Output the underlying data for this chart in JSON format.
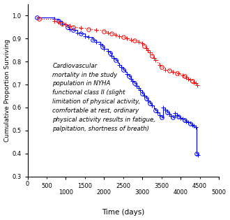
{
  "xlabel": "Time (days)",
  "ylabel": "Cumulative Proportion Surviving",
  "xlim": [
    0,
    5000
  ],
  "ylim": [
    0.3,
    1.05
  ],
  "xticks_major": [
    0,
    1000,
    2000,
    3000,
    4000,
    5000
  ],
  "xticks_minor": [
    500,
    1500,
    2500,
    3500,
    4500
  ],
  "yticks": [
    0.3,
    0.4,
    0.5,
    0.6,
    0.7,
    0.8,
    0.9,
    1.0
  ],
  "annotation": "Cardiovascular\nmortality in the study\npopulation in NYHA\nfunctional class II (slight\nlimitation of physical activity,\ncomfortable at rest, ordinary\nphysical activity results in fatigue,\npalpitation, shortness of breath)",
  "red_line_color": "#FF0000",
  "blue_line_color": "#0000FF",
  "blue_steps": [
    [
      250,
      0.99
    ],
    [
      700,
      0.985
    ],
    [
      800,
      0.975
    ],
    [
      900,
      0.965
    ],
    [
      950,
      0.96
    ],
    [
      1050,
      0.95
    ],
    [
      1100,
      0.94
    ],
    [
      1200,
      0.935
    ],
    [
      1300,
      0.925
    ],
    [
      1400,
      0.92
    ],
    [
      1500,
      0.91
    ],
    [
      1600,
      0.905
    ],
    [
      1700,
      0.895
    ],
    [
      1800,
      0.885
    ],
    [
      1900,
      0.875
    ],
    [
      1950,
      0.865
    ],
    [
      2000,
      0.855
    ],
    [
      2100,
      0.845
    ],
    [
      2150,
      0.835
    ],
    [
      2200,
      0.825
    ],
    [
      2250,
      0.815
    ],
    [
      2300,
      0.805
    ],
    [
      2350,
      0.795
    ],
    [
      2400,
      0.785
    ],
    [
      2450,
      0.775
    ],
    [
      2500,
      0.765
    ],
    [
      2550,
      0.755
    ],
    [
      2600,
      0.745
    ],
    [
      2650,
      0.735
    ],
    [
      2700,
      0.725
    ],
    [
      2750,
      0.715
    ],
    [
      2800,
      0.705
    ],
    [
      2850,
      0.695
    ],
    [
      2900,
      0.685
    ],
    [
      2950,
      0.675
    ],
    [
      3000,
      0.66
    ],
    [
      3050,
      0.65
    ],
    [
      3100,
      0.64
    ],
    [
      3150,
      0.63
    ],
    [
      3200,
      0.618
    ],
    [
      3250,
      0.608
    ],
    [
      3300,
      0.598
    ],
    [
      3350,
      0.588
    ],
    [
      3400,
      0.578
    ],
    [
      3450,
      0.568
    ],
    [
      3500,
      0.558
    ],
    [
      3550,
      0.6
    ],
    [
      3600,
      0.59
    ],
    [
      3650,
      0.58
    ],
    [
      3700,
      0.572
    ],
    [
      3750,
      0.565
    ],
    [
      3800,
      0.558
    ],
    [
      3850,
      0.575
    ],
    [
      3900,
      0.568
    ],
    [
      3950,
      0.562
    ],
    [
      4000,
      0.556
    ],
    [
      4050,
      0.55
    ],
    [
      4100,
      0.545
    ],
    [
      4150,
      0.54
    ],
    [
      4200,
      0.535
    ],
    [
      4250,
      0.53
    ],
    [
      4300,
      0.525
    ],
    [
      4350,
      0.52
    ],
    [
      4400,
      0.515
    ],
    [
      4420,
      0.4
    ],
    [
      4450,
      0.395
    ]
  ],
  "red_steps": [
    [
      300,
      0.985
    ],
    [
      700,
      0.975
    ],
    [
      800,
      0.97
    ],
    [
      900,
      0.965
    ],
    [
      1000,
      0.96
    ],
    [
      1100,
      0.955
    ],
    [
      1200,
      0.95
    ],
    [
      1400,
      0.945
    ],
    [
      1600,
      0.94
    ],
    [
      1800,
      0.935
    ],
    [
      2000,
      0.93
    ],
    [
      2100,
      0.925
    ],
    [
      2200,
      0.92
    ],
    [
      2300,
      0.915
    ],
    [
      2400,
      0.91
    ],
    [
      2500,
      0.905
    ],
    [
      2600,
      0.9
    ],
    [
      2700,
      0.895
    ],
    [
      2800,
      0.89
    ],
    [
      2900,
      0.885
    ],
    [
      3000,
      0.878
    ],
    [
      3050,
      0.868
    ],
    [
      3100,
      0.858
    ],
    [
      3150,
      0.848
    ],
    [
      3200,
      0.838
    ],
    [
      3250,
      0.825
    ],
    [
      3300,
      0.815
    ],
    [
      3350,
      0.805
    ],
    [
      3400,
      0.795
    ],
    [
      3450,
      0.785
    ],
    [
      3500,
      0.775
    ],
    [
      3600,
      0.765
    ],
    [
      3700,
      0.76
    ],
    [
      3800,
      0.755
    ],
    [
      3900,
      0.75
    ],
    [
      4000,
      0.745
    ],
    [
      4050,
      0.74
    ],
    [
      4100,
      0.735
    ],
    [
      4150,
      0.73
    ],
    [
      4200,
      0.725
    ],
    [
      4250,
      0.72
    ],
    [
      4300,
      0.715
    ],
    [
      4350,
      0.71
    ],
    [
      4400,
      0.705
    ],
    [
      4440,
      0.698
    ]
  ],
  "blue_circles": [
    250,
    800,
    1050,
    1200,
    1400,
    1700,
    1950,
    2150,
    2300,
    2500,
    2650,
    2800,
    3000,
    3100,
    3200,
    3350,
    3500,
    3650,
    3800,
    3950,
    4100,
    4250,
    4420
  ],
  "red_circles": [
    300,
    900,
    1200,
    1600,
    2000,
    2200,
    2500,
    2800,
    3050,
    3250,
    3500,
    3700,
    3900,
    4100,
    4300
  ],
  "blue_censors": [
    700,
    900,
    1100,
    1300,
    1500,
    1600,
    1800,
    1900,
    2000,
    2100,
    2200,
    2250,
    2400,
    2450,
    2600,
    2700,
    2750,
    2850,
    2900,
    2950,
    3050,
    3150,
    3250,
    3400,
    3450,
    3550,
    3600,
    3700,
    3750,
    3850,
    3900,
    4000,
    4050,
    4150,
    4200,
    4300,
    4350,
    4400,
    4450
  ],
  "red_censors": [
    700,
    800,
    1000,
    1100,
    1400,
    1800,
    2100,
    2300,
    2400,
    2600,
    2700,
    2900,
    3000,
    3100,
    3150,
    3200,
    3300,
    3350,
    3450,
    3600,
    3800,
    3950,
    4050,
    4150,
    4200,
    4250,
    4350,
    4400,
    4440
  ]
}
